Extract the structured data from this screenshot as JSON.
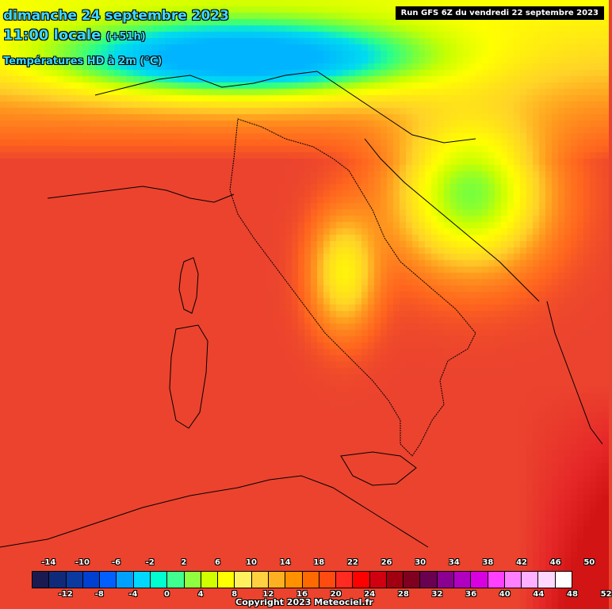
{
  "header": {
    "date": "dimanche 24 septembre 2023",
    "time": "11:00 locale",
    "lead": "(+51h)",
    "variable": "Températures HD à 2m (°C)",
    "run": "Run GFS 6Z du vendredi 22 septembre 2023"
  },
  "legend": {
    "top_labels": [
      "-14",
      "-10",
      "-6",
      "-2",
      "2",
      "6",
      "10",
      "14",
      "18",
      "22",
      "26",
      "30",
      "34",
      "38",
      "42",
      "46",
      "50"
    ],
    "bottom_labels": [
      "-12",
      "-8",
      "-4",
      "0",
      "4",
      "8",
      "12",
      "16",
      "20",
      "24",
      "28",
      "32",
      "36",
      "40",
      "44",
      "48",
      "52"
    ],
    "colors": [
      "#1a1a50",
      "#102a7a",
      "#0a3aa0",
      "#0040d0",
      "#0060ff",
      "#00a0ff",
      "#00d8ff",
      "#00ffd0",
      "#40ff90",
      "#90ff40",
      "#d0ff00",
      "#ffff00",
      "#fff060",
      "#ffd040",
      "#ffb020",
      "#ff9000",
      "#ff6a00",
      "#ff4a10",
      "#ff2a20",
      "#ff0000",
      "#d00010",
      "#a00010",
      "#800020",
      "#6a0050",
      "#8a0090",
      "#b000c0",
      "#d800e0",
      "#ff40ff",
      "#ff80ff",
      "#ffb0ff",
      "#ffd8ff",
      "#ffffff"
    ]
  },
  "copyright": "Copyright 2023 Meteociel.fr"
}
